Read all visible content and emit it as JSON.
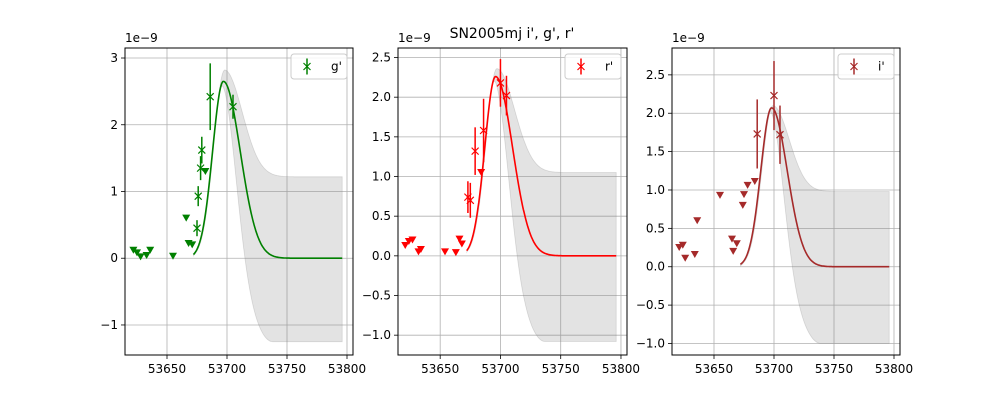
{
  "title": "SN2005mj  i', g', r'",
  "chart_data": [
    {
      "type": "scatter",
      "band": "g'",
      "color": "#008000",
      "xlim": [
        53615,
        53805
      ],
      "ylim": [
        -1.45,
        3.15
      ],
      "xticks": [
        53650,
        53700,
        53750,
        53800
      ],
      "xtick_labels": [
        "53650",
        "53700",
        "53750",
        "53800"
      ],
      "yticks": [
        -1,
        0,
        1,
        2,
        3
      ],
      "ytick_labels": [
        "−1",
        "0",
        "1",
        "2",
        "3"
      ],
      "offset_text": "1e−9",
      "legend": {
        "label": "g'",
        "position": "top-right"
      },
      "grid": true,
      "detections": [
        {
          "x": 53675,
          "y": 0.45,
          "err": 0.12
        },
        {
          "x": 53676,
          "y": 0.93,
          "err": 0.15
        },
        {
          "x": 53678,
          "y": 1.35,
          "err": 0.18
        },
        {
          "x": 53679,
          "y": 1.62,
          "err": 0.2
        },
        {
          "x": 53686,
          "y": 2.42,
          "err": 0.5
        },
        {
          "x": 53705,
          "y": 2.27,
          "err": 0.18
        }
      ],
      "upper_limits": [
        {
          "x": 53622,
          "y": 0.12
        },
        {
          "x": 53625,
          "y": 0.08
        },
        {
          "x": 53628,
          "y": 0.02
        },
        {
          "x": 53633,
          "y": 0.04
        },
        {
          "x": 53636,
          "y": 0.12
        },
        {
          "x": 53655,
          "y": 0.03
        },
        {
          "x": 53666,
          "y": 0.6
        },
        {
          "x": 53668,
          "y": 0.22
        },
        {
          "x": 53671,
          "y": 0.2
        },
        {
          "x": 53682,
          "y": 1.3
        }
      ],
      "model": {
        "peak_x": 53697,
        "peak_y": 2.65,
        "sigma_rise": 9,
        "sigma_fall": 14,
        "x_start": 53672,
        "x_end": 53796
      },
      "band_envelope": {
        "upper_peak_x": 53698,
        "upper_peak_y": 2.82,
        "upper_plateau": 1.22,
        "lower_plateau": -1.25,
        "x_start": 53672,
        "x_end": 53796
      }
    },
    {
      "type": "scatter",
      "band": "r'",
      "color": "#ff0000",
      "xlim": [
        53615,
        53805
      ],
      "ylim": [
        -1.25,
        2.62
      ],
      "xticks": [
        53650,
        53700,
        53750,
        53800
      ],
      "xtick_labels": [
        "53650",
        "53700",
        "53750",
        "53800"
      ],
      "yticks": [
        -1.0,
        -0.5,
        0.0,
        0.5,
        1.0,
        1.5,
        2.0,
        2.5
      ],
      "ytick_labels": [
        "−1.0",
        "−0.5",
        "0.0",
        "0.5",
        "1.0",
        "1.5",
        "2.0",
        "2.5"
      ],
      "offset_text": "1e−9",
      "legend": {
        "label": "r'",
        "position": "top-right"
      },
      "grid": true,
      "detections": [
        {
          "x": 53673,
          "y": 0.74,
          "err": 0.2
        },
        {
          "x": 53675,
          "y": 0.7,
          "err": 0.22
        },
        {
          "x": 53679,
          "y": 1.32,
          "err": 0.3
        },
        {
          "x": 53686,
          "y": 1.58,
          "err": 0.4
        },
        {
          "x": 53700,
          "y": 2.18,
          "err": 0.3
        },
        {
          "x": 53705,
          "y": 2.02,
          "err": 0.25
        }
      ],
      "upper_limits": [
        {
          "x": 53621,
          "y": 0.13
        },
        {
          "x": 53624,
          "y": 0.18
        },
        {
          "x": 53627,
          "y": 0.2
        },
        {
          "x": 53632,
          "y": 0.05
        },
        {
          "x": 53634,
          "y": 0.08
        },
        {
          "x": 53654,
          "y": 0.05
        },
        {
          "x": 53663,
          "y": 0.04
        },
        {
          "x": 53666,
          "y": 0.21
        },
        {
          "x": 53668,
          "y": 0.15
        },
        {
          "x": 53684,
          "y": 1.05
        }
      ],
      "model": {
        "peak_x": 53696,
        "peak_y": 2.26,
        "sigma_rise": 9,
        "sigma_fall": 14,
        "x_start": 53672,
        "x_end": 53796
      },
      "band_envelope": {
        "upper_peak_x": 53697,
        "upper_peak_y": 2.36,
        "upper_plateau": 1.05,
        "lower_plateau": -1.08,
        "x_start": 53672,
        "x_end": 53796
      }
    },
    {
      "type": "scatter",
      "band": "i'",
      "color": "#a52a2a",
      "xlim": [
        53615,
        53805
      ],
      "ylim": [
        -1.15,
        2.85
      ],
      "xticks": [
        53650,
        53700,
        53750,
        53800
      ],
      "xtick_labels": [
        "53650",
        "53700",
        "53750",
        "53800"
      ],
      "yticks": [
        -1.0,
        -0.5,
        0.0,
        0.5,
        1.0,
        1.5,
        2.0,
        2.5
      ],
      "ytick_labels": [
        "−1.0",
        "−0.5",
        "0.0",
        "0.5",
        "1.0",
        "1.5",
        "2.0",
        "2.5"
      ],
      "offset_text": "1e−9",
      "legend": {
        "label": "i'",
        "position": "top-right"
      },
      "grid": true,
      "detections": [
        {
          "x": 53686,
          "y": 1.73,
          "err": 0.45
        },
        {
          "x": 53700,
          "y": 2.23,
          "err": 0.45
        },
        {
          "x": 53705,
          "y": 1.72,
          "err": 0.38
        }
      ],
      "upper_limits": [
        {
          "x": 53621,
          "y": 0.25
        },
        {
          "x": 53624,
          "y": 0.28
        },
        {
          "x": 53626,
          "y": 0.11
        },
        {
          "x": 53634,
          "y": 0.16
        },
        {
          "x": 53636,
          "y": 0.6
        },
        {
          "x": 53655,
          "y": 0.93
        },
        {
          "x": 53665,
          "y": 0.36
        },
        {
          "x": 53666,
          "y": 0.2
        },
        {
          "x": 53669,
          "y": 0.3
        },
        {
          "x": 53674,
          "y": 0.8
        },
        {
          "x": 53675,
          "y": 0.94
        },
        {
          "x": 53678,
          "y": 1.06
        },
        {
          "x": 53684,
          "y": 1.11
        }
      ],
      "model": {
        "peak_x": 53698,
        "peak_y": 2.07,
        "sigma_rise": 9,
        "sigma_fall": 13,
        "x_start": 53672,
        "x_end": 53796
      },
      "band_envelope": {
        "upper_peak_x": 53699,
        "upper_peak_y": 2.1,
        "upper_plateau": 0.98,
        "lower_plateau": -1.0,
        "x_start": 53672,
        "x_end": 53796
      }
    }
  ]
}
